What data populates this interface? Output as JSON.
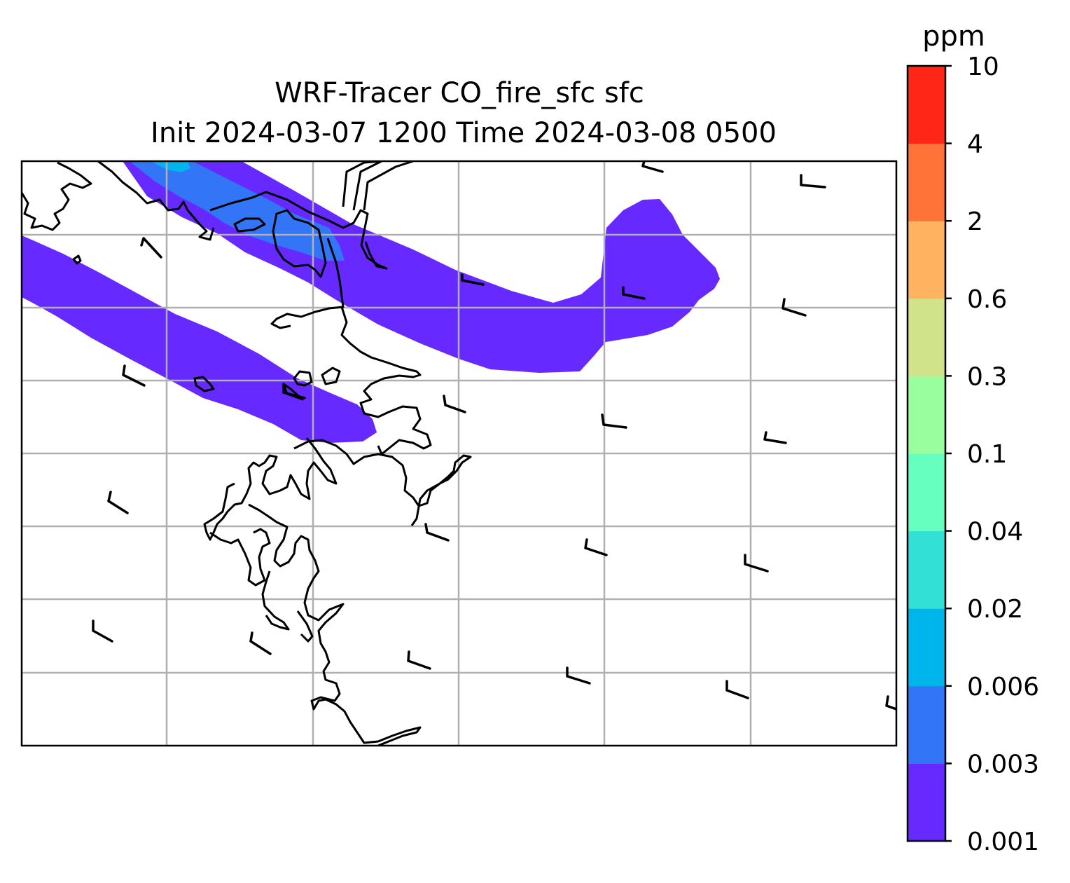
{
  "title": {
    "line1": "WRF-Tracer CO_fire_sfc sfc",
    "line2": "Init 2024-03-07 1200 Time 2024-03-08 0500"
  },
  "colorbar": {
    "unit": "ppm",
    "levels": [
      "0.001",
      "0.003",
      "0.006",
      "0.02",
      "0.04",
      "0.1",
      "0.3",
      "0.6",
      "2",
      "4",
      "10"
    ],
    "colors": [
      "#6629ff",
      "#3375f7",
      "#00b5eb",
      "#33e0d6",
      "#66ffbf",
      "#99ff9e",
      "#d1e38a",
      "#ffb361",
      "#ff7338",
      "#ff2617"
    ]
  },
  "map": {
    "gridlines": true,
    "coastline_color": "#000000",
    "grid_color": "#b0b0b0"
  },
  "chart_data": {
    "type": "contour-map",
    "variable": "CO_fire_sfc",
    "unit": "ppm",
    "plumes": [
      {
        "level_range": [
          "0.001",
          "0.003"
        ],
        "description": "northern band over the coast and eastward curl"
      },
      {
        "level_range": [
          "0.003",
          "0.006"
        ],
        "description": "inner core of northern band"
      },
      {
        "level_range": [
          "0.006",
          "0.02"
        ],
        "description": "small patch near top"
      },
      {
        "level_range": [
          "0.001",
          "0.003"
        ],
        "description": "southern band"
      }
    ],
    "wind_barbs": true
  }
}
